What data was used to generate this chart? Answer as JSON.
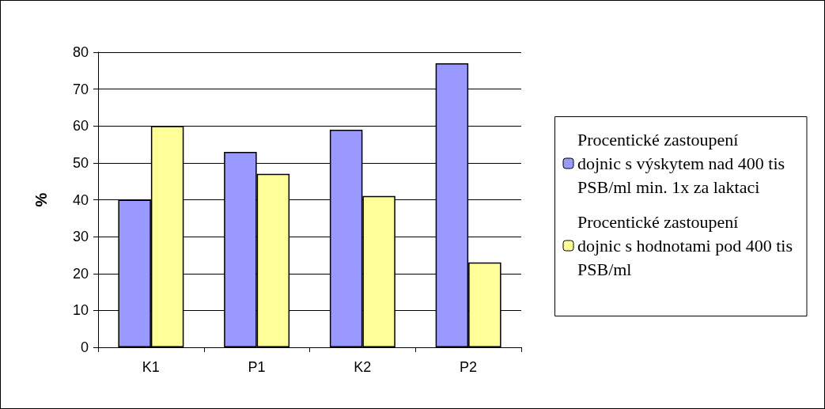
{
  "chart_data": {
    "type": "bar",
    "ylabel": "%",
    "categories": [
      "K1",
      "P1",
      "K2",
      "P2"
    ],
    "series": [
      {
        "name": "Procentické zastoupení dojnic s výskytem nad 400 tis PSB/ml min. 1x za laktaci",
        "color": "#9999ff",
        "values": [
          40,
          53,
          59,
          77
        ]
      },
      {
        "name": "Procentické zastoupení dojnic s hodnotami pod 400 tis PSB/ml",
        "color": "#ffff99",
        "values": [
          60,
          47,
          41,
          23
        ]
      }
    ],
    "ylim": [
      0,
      80
    ],
    "yticks": [
      0,
      10,
      20,
      30,
      40,
      50,
      60,
      70,
      80
    ],
    "grid": "y",
    "legend": "right"
  }
}
